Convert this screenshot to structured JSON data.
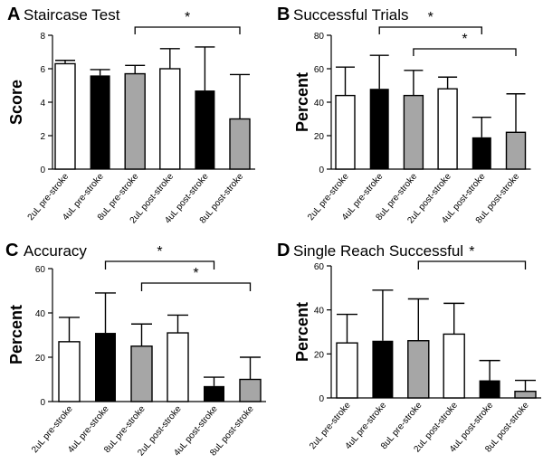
{
  "chart_data": [
    {
      "type": "bar",
      "letter": "A",
      "title": "Staircase Test",
      "ylabel": "Score",
      "xlabel": "",
      "ylim": [
        0,
        8
      ],
      "yticks": [
        0,
        2,
        4,
        6,
        8
      ],
      "categories": [
        "2uL pre-stroke",
        "4uL pre-stroke",
        "8uL pre-stroke",
        "2uL post-stroke",
        "4uL post-stroke",
        "8uL post-stroke"
      ],
      "values": [
        6.3,
        5.6,
        5.7,
        6.0,
        4.7,
        3.0
      ],
      "errors": [
        0.2,
        0.35,
        0.5,
        1.2,
        2.6,
        2.65
      ],
      "bar_colors": [
        "#ffffff",
        "#000000",
        "#a6a6a6",
        "#ffffff",
        "#000000",
        "#a6a6a6"
      ],
      "significance": [
        {
          "from": 2,
          "to": 5,
          "label": "*"
        }
      ]
    },
    {
      "type": "bar",
      "letter": "B",
      "title": "Successful Trials",
      "ylabel": "Percent",
      "xlabel": "",
      "ylim": [
        0,
        80
      ],
      "yticks": [
        0,
        20,
        40,
        60,
        80
      ],
      "categories": [
        "2uL pre-stroke",
        "4uL pre-stroke",
        "8uL pre-stroke",
        "2uL post-stroke",
        "4uL post-stroke",
        "8uL post-stroke"
      ],
      "values": [
        44,
        48,
        44,
        48,
        19,
        22
      ],
      "errors": [
        17,
        20,
        15,
        7,
        12,
        23
      ],
      "bar_colors": [
        "#ffffff",
        "#000000",
        "#a6a6a6",
        "#ffffff",
        "#000000",
        "#a6a6a6"
      ],
      "significance": [
        {
          "from": 1,
          "to": 4,
          "label": "*"
        },
        {
          "from": 2,
          "to": 5,
          "label": "*"
        }
      ]
    },
    {
      "type": "bar",
      "letter": "C",
      "title": "Accuracy",
      "ylabel": "Percent",
      "xlabel": "",
      "ylim": [
        0,
        60
      ],
      "yticks": [
        0,
        20,
        40,
        60
      ],
      "categories": [
        "2uL pre-stroke",
        "4uL pre-stroke",
        "8uL pre-stroke",
        "2uL post-stroke",
        "4uL post-stroke",
        "8uL post-stroke"
      ],
      "values": [
        27,
        31,
        25,
        31,
        7,
        10
      ],
      "errors": [
        11,
        18,
        10,
        8,
        4,
        10
      ],
      "bar_colors": [
        "#ffffff",
        "#000000",
        "#a6a6a6",
        "#ffffff",
        "#000000",
        "#a6a6a6"
      ],
      "significance": [
        {
          "from": 1,
          "to": 4,
          "label": "*"
        },
        {
          "from": 2,
          "to": 5,
          "label": "*"
        }
      ]
    },
    {
      "type": "bar",
      "letter": "D",
      "title": "Single Reach Successful",
      "ylabel": "Percent",
      "xlabel": "",
      "ylim": [
        0,
        60
      ],
      "yticks": [
        0,
        20,
        40,
        60
      ],
      "categories": [
        "2uL pre-stroke",
        "4uL pre-stroke",
        "8uL pre-stroke",
        "2uL post-stroke",
        "4uL post-stroke",
        "8uL post-stroke"
      ],
      "values": [
        25,
        26,
        26,
        29,
        8,
        3
      ],
      "errors": [
        13,
        23,
        19,
        14,
        9,
        5
      ],
      "bar_colors": [
        "#ffffff",
        "#000000",
        "#a6a6a6",
        "#ffffff",
        "#000000",
        "#a6a6a6"
      ],
      "significance": [
        {
          "from": 2,
          "to": 5,
          "label": "*"
        }
      ]
    }
  ]
}
